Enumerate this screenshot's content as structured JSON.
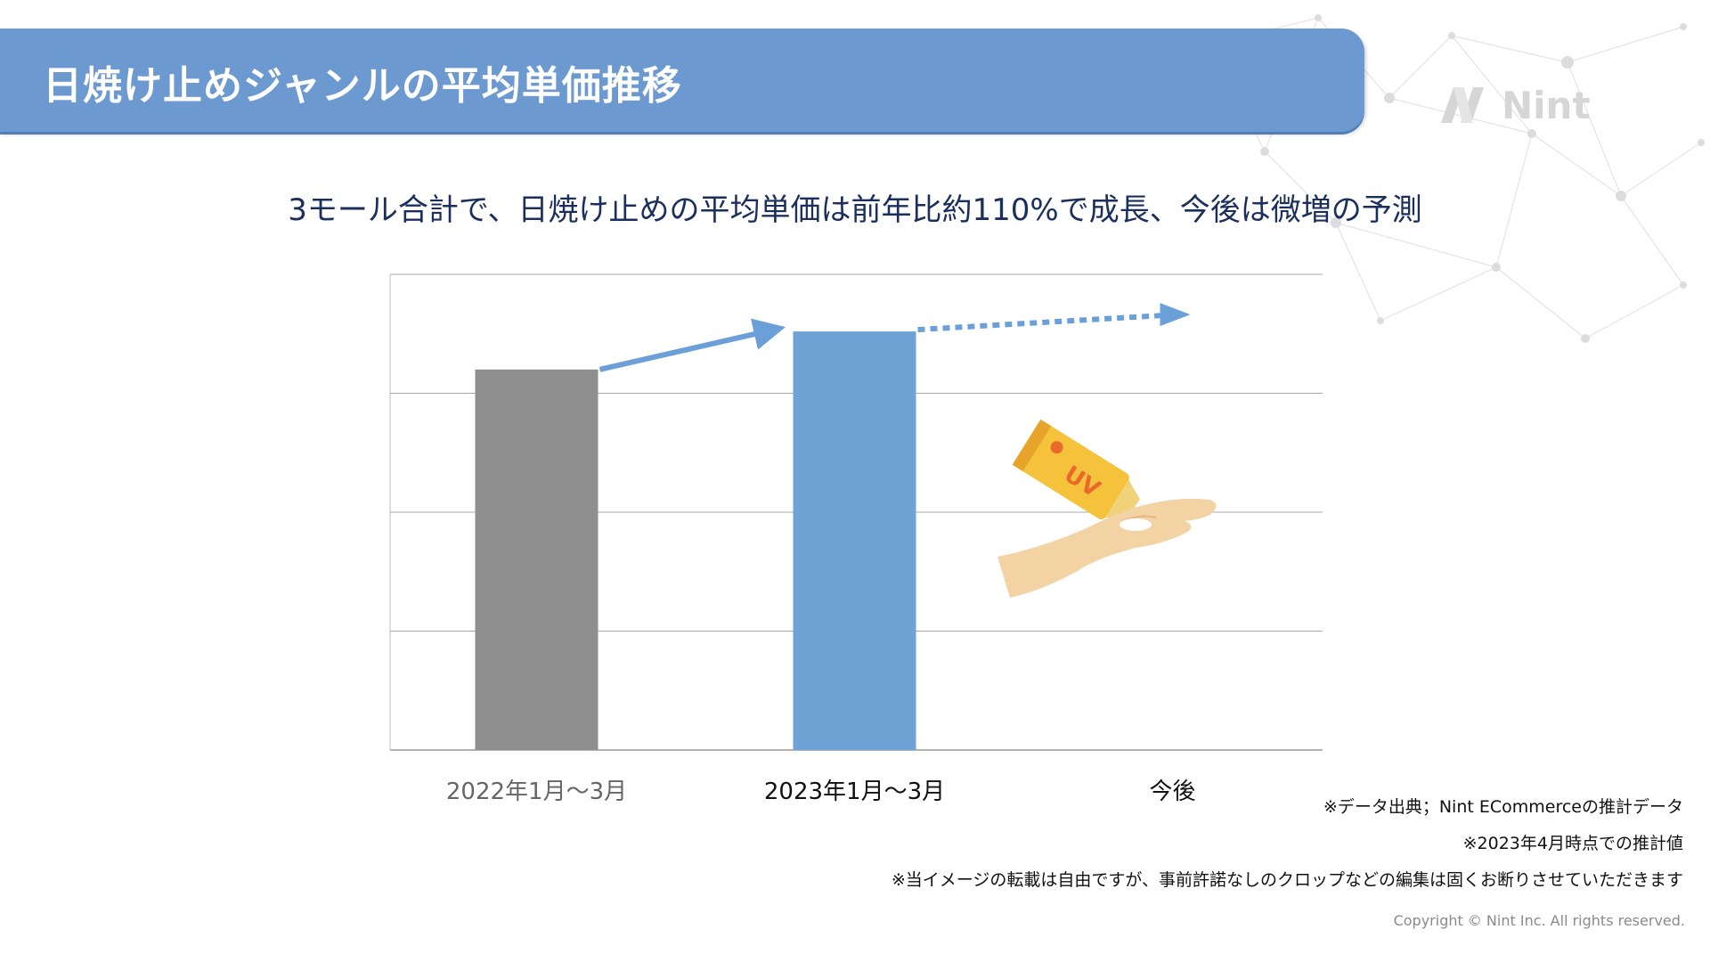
{
  "header": {
    "title": "日焼け止めジャンルの平均単価推移"
  },
  "logo": {
    "text": "Nint"
  },
  "subtitle": "3モール合計で、日焼け止めの平均単価は前年比約110%で成長、今後は微増の予測",
  "chart_data": {
    "type": "bar",
    "title": "",
    "xlabel": "",
    "ylabel": "",
    "categories": [
      "2022年1月～3月",
      "2023年1月～3月",
      "今後"
    ],
    "values": [
      100,
      110,
      null
    ],
    "ylim": [
      0,
      125
    ],
    "grid": true,
    "forecast": "slight increase (dotted arrow)",
    "colors": {
      "bar_2022": "#8e8e8e",
      "bar_2023": "#6fa3d6",
      "arrow": "#6b9fd8",
      "category_2022": "#666666",
      "category_2023": "#111111",
      "category_future": "#111111"
    }
  },
  "notes": [
    "※データ出典；Nint ECommerceの推計データ",
    "※2023年4月時点での推計値",
    "※当イメージの転載は自由ですが、事前許諾なしのクロップなどの編集は固くお断りさせていただきます"
  ],
  "illustration": {
    "icon": "sunscreen-hand-icon",
    "tube_label": "UV"
  },
  "footer": {
    "copyright": "Copyright © Nint Inc. All rights reserved."
  }
}
